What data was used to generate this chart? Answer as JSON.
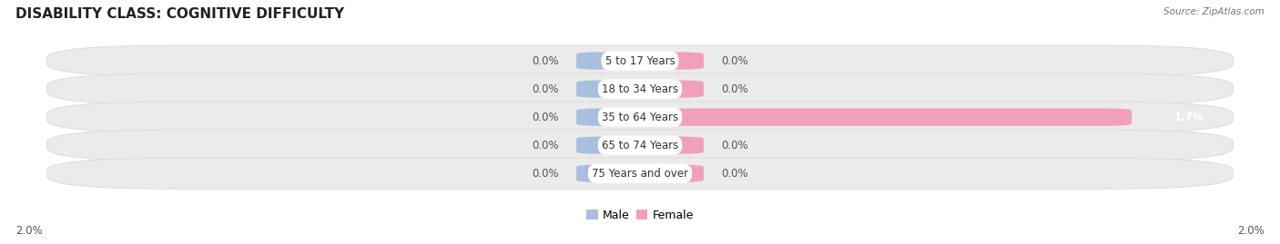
{
  "title": "DISABILITY CLASS: COGNITIVE DIFFICULTY",
  "source": "Source: ZipAtlas.com",
  "categories": [
    "5 to 17 Years",
    "18 to 34 Years",
    "35 to 64 Years",
    "65 to 74 Years",
    "75 Years and over"
  ],
  "male_values": [
    0.0,
    0.0,
    0.0,
    0.0,
    0.0
  ],
  "female_values": [
    0.0,
    0.0,
    1.7,
    0.0,
    0.0
  ],
  "max_val": 2.0,
  "x_axis_left_label": "2.0%",
  "x_axis_right_label": "2.0%",
  "male_color": "#a8c0de",
  "female_color": "#f0a0bc",
  "row_bg_color": "#ebebeb",
  "row_bg_edge": "#dedede",
  "title_fontsize": 11,
  "label_fontsize": 8.5,
  "legend_fontsize": 9,
  "value_fontsize": 8.5,
  "stub_pct": 0.22,
  "bar_height": 0.62
}
